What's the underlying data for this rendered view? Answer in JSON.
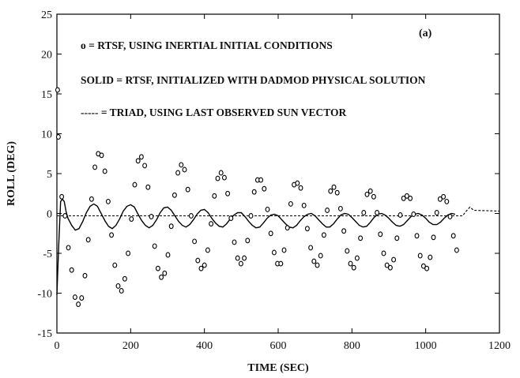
{
  "chart_data": {
    "type": "line",
    "panel_label": "(a)",
    "xlabel": "TIME (SEC)",
    "ylabel": "ROLL (DEG)",
    "xlim": [
      0,
      1200
    ],
    "ylim": [
      -15,
      25
    ],
    "xticks": [
      "0",
      "200",
      "400",
      "600",
      "800",
      "1000",
      "1200"
    ],
    "yticks": [
      "25",
      "20",
      "15",
      "10",
      "5",
      "0",
      "-5",
      "-10",
      "-15"
    ],
    "grid": false,
    "annotations": [
      "o = RTSF, USING INERTIAL INITIAL CONDITIONS",
      "SOLID = RTSF, INITIALIZED WITH DADMOD PHYSICAL SOLUTION",
      "----- = TRIAD, USING LAST OBSERVED SUN VECTOR"
    ],
    "series": [
      {
        "style": "circles",
        "x": [
          2,
          4,
          13,
          22,
          31,
          40,
          49,
          58,
          67,
          76,
          85,
          94,
          103,
          112,
          121,
          130,
          139,
          148,
          157,
          166,
          175,
          184,
          193,
          202,
          211,
          220,
          229,
          238,
          247,
          256,
          265,
          274,
          283,
          292,
          301,
          310,
          319,
          328,
          337,
          346,
          355,
          364,
          373,
          382,
          391,
          400,
          409,
          418,
          427,
          436,
          445,
          454,
          463,
          472,
          481,
          490,
          499,
          508,
          517,
          526,
          535,
          544,
          553,
          562,
          571,
          580,
          589,
          598,
          607,
          616,
          625,
          634,
          643,
          652,
          661,
          670,
          679,
          688,
          697,
          706,
          715,
          724,
          733,
          742,
          751,
          760,
          769,
          778,
          787,
          796,
          805,
          814,
          823,
          832,
          841,
          850,
          859,
          868,
          877,
          886,
          895,
          904,
          913,
          922,
          931,
          940,
          949,
          958,
          967,
          976,
          985,
          994,
          1003,
          1012,
          1021,
          1030,
          1039,
          1048,
          1057,
          1066,
          1075,
          1084
        ],
        "y": [
          15.5,
          9.6,
          2.1,
          -0.3,
          -4.3,
          -7.1,
          -10.5,
          -11.4,
          -10.6,
          -7.8,
          -3.3,
          1.8,
          5.8,
          7.5,
          7.3,
          5.3,
          1.5,
          -2.7,
          -6.5,
          -9.1,
          -9.7,
          -8.2,
          -5.0,
          -0.7,
          3.6,
          6.6,
          7.1,
          6.0,
          3.3,
          -0.4,
          -4.1,
          -6.9,
          -8.0,
          -7.5,
          -5.2,
          -1.6,
          2.3,
          5.1,
          6.1,
          5.5,
          3.0,
          -0.3,
          -3.5,
          -5.9,
          -6.9,
          -6.5,
          -4.6,
          -1.3,
          2.2,
          4.4,
          5.1,
          4.5,
          2.5,
          -0.6,
          -3.6,
          -5.6,
          -6.3,
          -5.6,
          -3.4,
          -0.3,
          2.7,
          4.2,
          4.2,
          3.1,
          0.5,
          -2.5,
          -4.9,
          -6.3,
          -6.3,
          -4.6,
          -1.8,
          1.2,
          3.6,
          3.8,
          3.2,
          1.0,
          -1.9,
          -4.3,
          -6.0,
          -6.5,
          -5.3,
          -2.7,
          0.4,
          2.8,
          3.3,
          2.6,
          0.6,
          -2.2,
          -4.7,
          -6.3,
          -6.8,
          -5.6,
          -3.1,
          0.1,
          2.4,
          2.8,
          2.1,
          0.1,
          -2.6,
          -5.0,
          -6.5,
          -6.8,
          -5.8,
          -3.1,
          -0.2,
          1.9,
          2.2,
          1.9,
          -0.1,
          -2.8,
          -5.3,
          -6.6,
          -6.9,
          -5.5,
          -3.0,
          0.1,
          1.8,
          2.1,
          1.5,
          -0.4,
          -2.8,
          -4.6
        ]
      },
      {
        "style": "solid",
        "x": [
          0,
          5,
          10,
          15,
          20,
          25,
          30,
          40,
          50,
          60,
          70,
          80,
          90,
          100,
          110,
          120,
          130,
          140,
          150,
          160,
          170,
          180,
          190,
          200,
          210,
          220,
          230,
          240,
          250,
          260,
          270,
          280,
          290,
          300,
          310,
          320,
          330,
          340,
          350,
          360,
          370,
          380,
          390,
          400,
          410,
          420,
          430,
          440,
          450,
          460,
          470,
          480,
          490,
          500,
          510,
          520,
          530,
          540,
          550,
          560,
          570,
          580,
          590,
          600,
          610,
          620,
          630,
          640,
          650,
          660,
          670,
          680,
          690,
          700,
          710,
          720,
          730,
          740,
          750,
          760,
          770,
          780,
          790,
          800,
          810,
          820,
          830,
          840,
          850,
          860,
          870,
          880,
          890,
          900,
          910,
          920,
          930,
          940,
          950,
          960,
          970,
          980,
          990,
          1000,
          1010,
          1020,
          1030,
          1040,
          1050,
          1060,
          1070,
          1080
        ],
        "y": [
          -10.2,
          -4.0,
          1.5,
          1.8,
          1.5,
          0.2,
          -0.6,
          -1.5,
          -2.1,
          -1.9,
          -1.0,
          0.1,
          0.9,
          1.2,
          0.9,
          0.0,
          -0.9,
          -1.6,
          -1.9,
          -1.5,
          -0.7,
          0.3,
          0.9,
          1.1,
          0.8,
          -0.1,
          -0.9,
          -1.5,
          -1.8,
          -1.5,
          -0.8,
          0.1,
          0.7,
          0.8,
          0.4,
          -0.3,
          -1.0,
          -1.5,
          -1.7,
          -1.4,
          -0.8,
          -0.1,
          0.4,
          0.5,
          0.1,
          -0.6,
          -1.2,
          -1.6,
          -1.7,
          -1.3,
          -0.7,
          -0.2,
          0.1,
          0.1,
          -0.4,
          -1.0,
          -1.5,
          -1.8,
          -1.7,
          -1.2,
          -0.6,
          -0.2,
          -0.1,
          -0.3,
          -0.8,
          -1.3,
          -1.7,
          -1.8,
          -1.5,
          -0.9,
          -0.4,
          -0.1,
          0.0,
          -0.3,
          -0.8,
          -1.3,
          -1.7,
          -1.7,
          -1.3,
          -0.7,
          -0.2,
          0.0,
          -0.1,
          -0.5,
          -1.0,
          -1.5,
          -1.7,
          -1.6,
          -1.1,
          -0.5,
          -0.1,
          0.0,
          -0.2,
          -0.6,
          -1.1,
          -1.5,
          -1.6,
          -1.4,
          -0.9,
          -0.4,
          -0.1,
          0.0,
          -0.2,
          -0.6,
          -1.1,
          -1.4,
          -1.4,
          -1.1,
          -0.6,
          -0.2,
          0.0,
          -0.1
        ]
      },
      {
        "style": "dashed",
        "x": [
          0,
          200,
          400,
          600,
          800,
          1000,
          1060,
          1100,
          1110,
          1120,
          1130,
          1200
        ],
        "y": [
          -0.3,
          -0.3,
          -0.3,
          -0.3,
          -0.3,
          -0.3,
          -0.3,
          -0.3,
          0.3,
          0.8,
          0.4,
          0.3
        ]
      }
    ]
  }
}
